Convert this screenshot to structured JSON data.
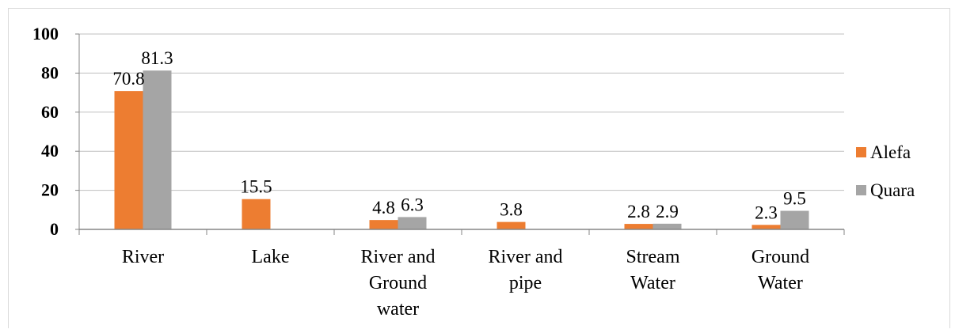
{
  "chart_data": {
    "type": "bar",
    "categories": [
      [
        "River"
      ],
      [
        "Lake"
      ],
      [
        "River and",
        "Ground",
        "water"
      ],
      [
        "River and",
        "pipe"
      ],
      [
        "Stream",
        "Water"
      ],
      [
        "Ground",
        "Water"
      ]
    ],
    "series": [
      {
        "name": "Alefa",
        "color": "#ED7D31",
        "values": [
          70.8,
          15.5,
          4.8,
          3.8,
          2.8,
          2.3
        ]
      },
      {
        "name": "Quara",
        "color": "#A5A5A5",
        "values": [
          81.3,
          null,
          6.3,
          null,
          2.9,
          9.5
        ]
      }
    ],
    "ylim": [
      0,
      100
    ],
    "yticks": [
      0,
      20,
      40,
      60,
      80,
      100
    ],
    "grid": true,
    "legend": "right"
  }
}
